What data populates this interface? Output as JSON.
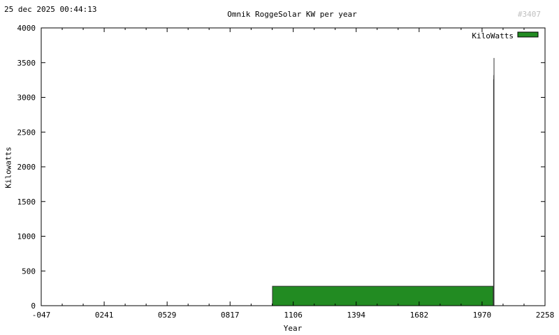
{
  "timestamp": "25 dec 2025 00:44:13",
  "watermark": "#3407",
  "chart_data": {
    "type": "bar",
    "title": "Omnik RoggeSolar KW per year",
    "xlabel": "Year",
    "ylabel": "Kilowatts",
    "xlim": [
      -47,
      2258
    ],
    "ylim": [
      0,
      4000
    ],
    "x_ticks": [
      -47,
      241,
      529,
      817,
      1106,
      1394,
      1682,
      1970,
      2258
    ],
    "x_tick_labels": [
      "-047",
      "0241",
      "0529",
      "0817",
      "1106",
      "1394",
      "1682",
      "1970",
      "2258"
    ],
    "y_ticks": [
      0,
      500,
      1000,
      1500,
      2000,
      2500,
      3000,
      3500,
      4000
    ],
    "legend_position": "top-right",
    "grid": false,
    "series": [
      {
        "name": "KiloWatts",
        "color": "#228b22",
        "points": [
          {
            "x": 1011,
            "y": 280
          },
          {
            "x": 2021,
            "y": 3260
          },
          {
            "x": 2022,
            "y": 3320
          },
          {
            "x": 2023,
            "y": 3567
          }
        ]
      }
    ]
  }
}
